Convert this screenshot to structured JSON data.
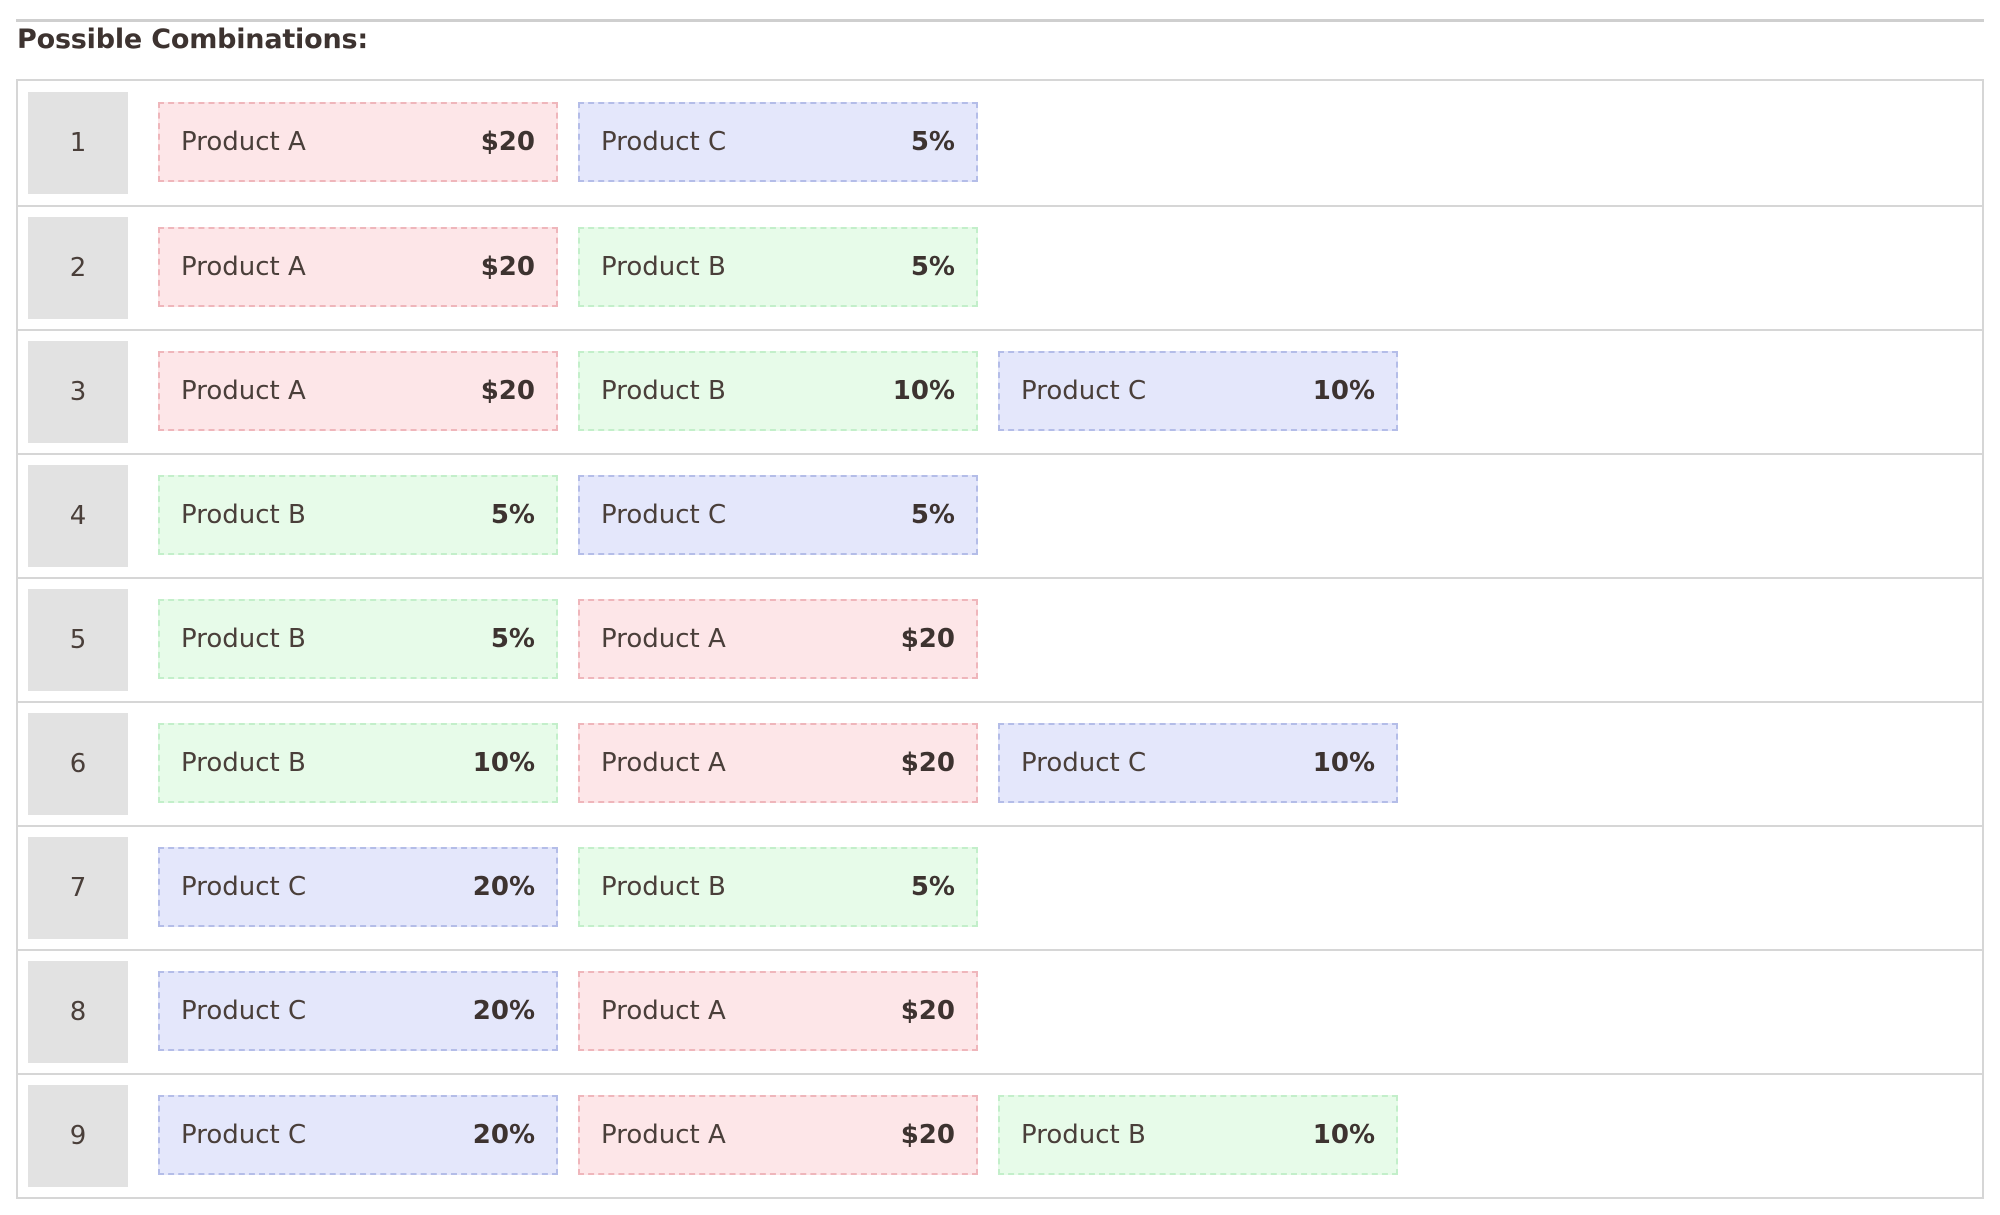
{
  "heading": "Possible Combinations:",
  "colors": {
    "product_a": {
      "background": "#fde6e8",
      "border": "#efb6bb"
    },
    "product_b": {
      "background": "#e7fbe9",
      "border": "#c3efca"
    },
    "product_c": {
      "background": "#e4e7fb",
      "border": "#b4bde8"
    },
    "number_cell": "#e2e2e2"
  },
  "combinations": [
    {
      "number": "1",
      "items": [
        {
          "name": "Product A",
          "value": "$20",
          "type": "a"
        },
        {
          "name": "Product C",
          "value": "5%",
          "type": "c"
        }
      ]
    },
    {
      "number": "2",
      "items": [
        {
          "name": "Product A",
          "value": "$20",
          "type": "a"
        },
        {
          "name": "Product B",
          "value": "5%",
          "type": "b"
        }
      ]
    },
    {
      "number": "3",
      "items": [
        {
          "name": "Product A",
          "value": "$20",
          "type": "a"
        },
        {
          "name": "Product B",
          "value": "10%",
          "type": "b"
        },
        {
          "name": "Product C",
          "value": "10%",
          "type": "c"
        }
      ]
    },
    {
      "number": "4",
      "items": [
        {
          "name": "Product B",
          "value": "5%",
          "type": "b"
        },
        {
          "name": "Product C",
          "value": "5%",
          "type": "c"
        }
      ]
    },
    {
      "number": "5",
      "items": [
        {
          "name": "Product B",
          "value": "5%",
          "type": "b"
        },
        {
          "name": "Product A",
          "value": "$20",
          "type": "a"
        }
      ]
    },
    {
      "number": "6",
      "items": [
        {
          "name": "Product B",
          "value": "10%",
          "type": "b"
        },
        {
          "name": "Product A",
          "value": "$20",
          "type": "a"
        },
        {
          "name": "Product C",
          "value": "10%",
          "type": "c"
        }
      ]
    },
    {
      "number": "7",
      "items": [
        {
          "name": "Product C",
          "value": "20%",
          "type": "c"
        },
        {
          "name": "Product B",
          "value": "5%",
          "type": "b"
        }
      ]
    },
    {
      "number": "8",
      "items": [
        {
          "name": "Product C",
          "value": "20%",
          "type": "c"
        },
        {
          "name": "Product A",
          "value": "$20",
          "type": "a"
        }
      ]
    },
    {
      "number": "9",
      "items": [
        {
          "name": "Product C",
          "value": "20%",
          "type": "c"
        },
        {
          "name": "Product A",
          "value": "$20",
          "type": "a"
        },
        {
          "name": "Product B",
          "value": "10%",
          "type": "b"
        }
      ]
    }
  ]
}
